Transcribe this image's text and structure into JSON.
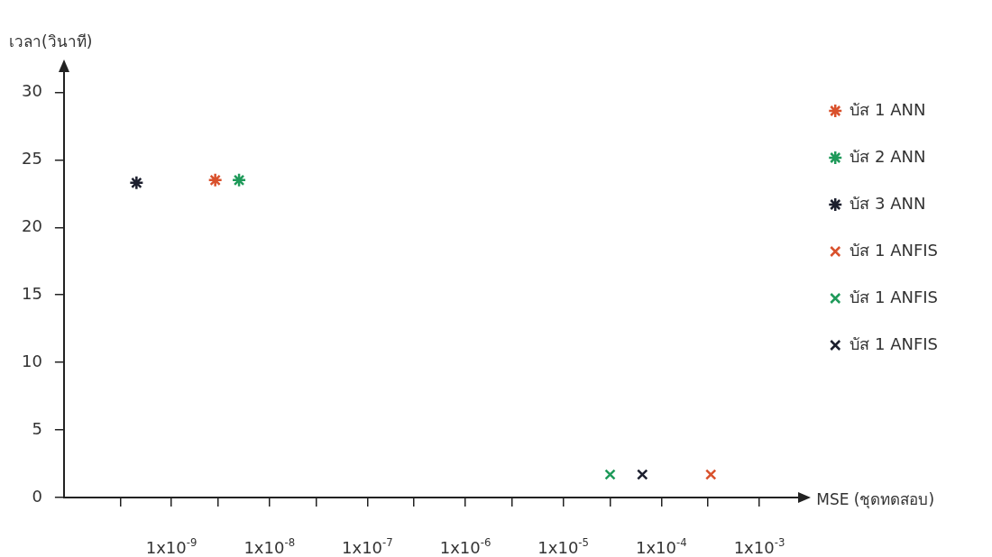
{
  "chart_data": {
    "type": "scatter",
    "xlabel": "MSE (ชุดทดสอบ)",
    "ylabel": "เวลา(วินาที)",
    "log": "x",
    "xlim": [
      8e-11,
      0.0025
    ],
    "xticks": [
      {
        "value": 3e-10,
        "label": null
      },
      {
        "value": 1e-09,
        "label": "1x10$^{-9}$"
      },
      {
        "value": 3e-09,
        "label": null
      },
      {
        "value": 1e-08,
        "label": "1x10$^{-8}$"
      },
      {
        "value": 3e-08,
        "label": null
      },
      {
        "value": 1e-07,
        "label": "1x10$^{-7}$"
      },
      {
        "value": 3e-07,
        "label": null
      },
      {
        "value": 1e-06,
        "label": "1x10$^{-6}$"
      },
      {
        "value": 3e-06,
        "label": null
      },
      {
        "value": 1e-05,
        "label": "1x10$^{-5}$"
      },
      {
        "value": 3e-05,
        "label": null
      },
      {
        "value": 0.0001,
        "label": "1x10$^{-4}$"
      },
      {
        "value": 0.0003,
        "label": null
      },
      {
        "value": 0.001,
        "label": "1x10$^{-3}$"
      }
    ],
    "ylim": [
      0,
      31.5
    ],
    "yticks": [
      0,
      5,
      10,
      15,
      20,
      25,
      30
    ],
    "grid": false,
    "legend": "top right",
    "series": [
      {
        "name": "บัส 1 ANN",
        "color": "#d9512c",
        "x": [
          2.8e-09
        ],
        "values": [
          23.5
        ]
      },
      {
        "name": "บัส 2 ANN",
        "color": "#1f9a5a",
        "x": [
          4.9e-09
        ],
        "values": [
          23.5
        ]
      },
      {
        "name": "บัส 3 ANN",
        "color": "#1c1f2e",
        "x": [
          4.4e-10
        ],
        "values": [
          23.3
        ]
      },
      {
        "name": "บัส 1 ANFIS",
        "color": "#d9512c",
        "marker": "cross",
        "x": [
          0.00032
        ],
        "values": [
          1.7
        ]
      },
      {
        "name": "บัส 1 ANFIS",
        "color": "#1f9a5a",
        "marker": "cross",
        "x": [
          3e-05
        ],
        "values": [
          1.7
        ]
      },
      {
        "name": "บัส 1 ANFIS",
        "color": "#1c1f2e",
        "marker": "cross",
        "x": [
          6.4e-05
        ],
        "values": [
          1.7
        ]
      }
    ]
  }
}
